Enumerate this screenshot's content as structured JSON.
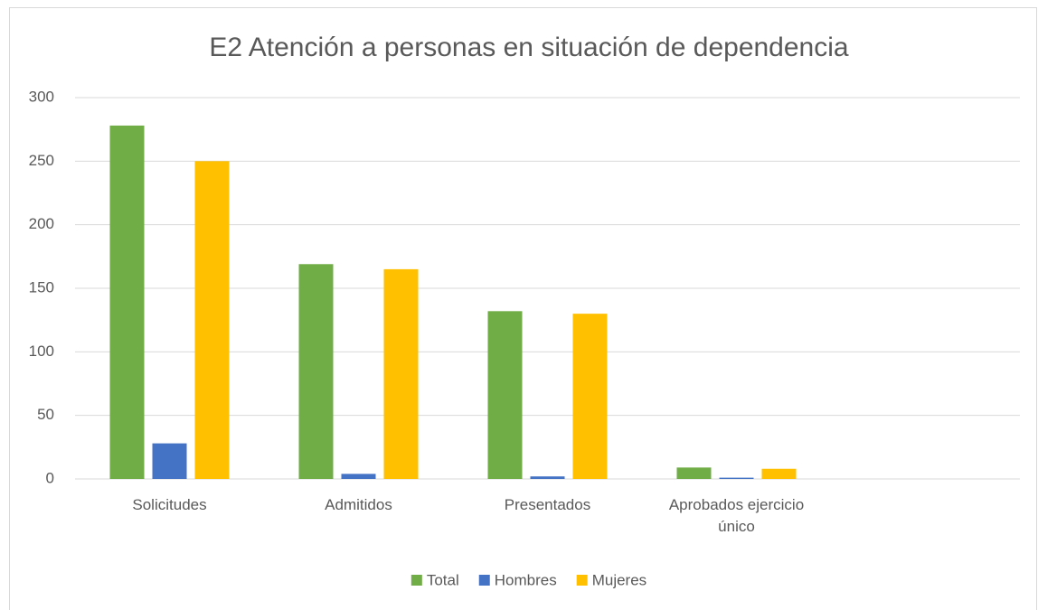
{
  "chart_data": {
    "type": "bar",
    "title": "E2 Atención a personas en situación de dependencia",
    "categories": [
      "Solicitudes",
      "Admitidos",
      "Presentados",
      "Aprobados ejercicio único",
      null
    ],
    "series": [
      {
        "name": "Total",
        "color": "#70ad47",
        "values": [
          278,
          169,
          132,
          9,
          null
        ]
      },
      {
        "name": "Hombres",
        "color": "#4472c4",
        "values": [
          28,
          4,
          2,
          1,
          null
        ]
      },
      {
        "name": "Mujeres",
        "color": "#ffc000",
        "values": [
          250,
          165,
          130,
          8,
          null
        ]
      }
    ],
    "ylim": [
      0,
      300
    ],
    "yticks": [
      0,
      50,
      100,
      150,
      200,
      250,
      300
    ],
    "grid": true,
    "legend": "bottom"
  }
}
